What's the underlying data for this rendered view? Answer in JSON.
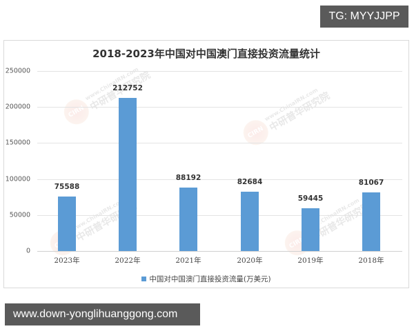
{
  "badges": {
    "top_right": "TG: MYYJJPP",
    "bottom_left": "www.down-yonglihuanggong.com"
  },
  "watermark": {
    "logo": "CIRN",
    "url": "www.ChinaIRN.com",
    "name": "中研普华研究院"
  },
  "colors": {
    "bar": "#5b9bd5",
    "gridline": "#e3e3e3",
    "badge_bg": "#5a5a5a"
  },
  "chart_data": {
    "type": "bar",
    "title": "2018-2023年中国对中国澳门直接投资流量统计",
    "xlabel": "",
    "ylabel": "",
    "categories": [
      "2023年",
      "2022年",
      "2021年",
      "2020年",
      "2019年",
      "2018年"
    ],
    "series": [
      {
        "name": "中国对中国澳门直接投资流量(万美元)",
        "values": [
          75588,
          212752,
          88192,
          82684,
          59445,
          81067
        ]
      }
    ],
    "value_labels": [
      "75588",
      "212752",
      "88192",
      "82684",
      "59445",
      "81067"
    ],
    "yticks": [
      "250000",
      "200000",
      "150000",
      "100000",
      "50000",
      "0"
    ],
    "ylim": [
      0,
      250000
    ],
    "grid": true,
    "legend_position": "bottom",
    "legend": [
      "中国对中国澳门直接投资流量(万美元)"
    ]
  }
}
